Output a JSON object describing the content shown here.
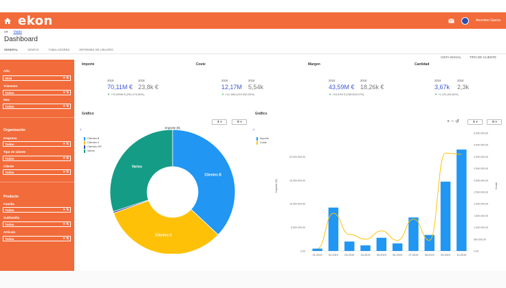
{
  "app": {
    "logo": "ekon",
    "user": "Anonimo Garcia"
  },
  "nav": {
    "menu_icon": "≡▾",
    "breadcrumb": "Visão",
    "title": "Dashboard"
  },
  "tabs": [
    "GENERAL",
    "VENTAS",
    "TABULADORES",
    "INFORMES DE USUARIO"
  ],
  "views": [
    "VISTA INICIAL",
    "TIPO DE CLIENTE"
  ],
  "sidebar": {
    "fields_top": [
      {
        "label": "Año",
        "value": "2019"
      },
      {
        "label": "Trimestre",
        "value": "Todos"
      },
      {
        "label": "Mes",
        "value": "Todos"
      }
    ],
    "org_title": "Organización",
    "fields_org": [
      {
        "label": "Empresa",
        "value": "Todos"
      },
      {
        "label": "Tipo de cliente",
        "value": "Todos"
      },
      {
        "label": "Cliente",
        "value": "Todos"
      }
    ],
    "prod_title": "Producto",
    "fields_prod": [
      {
        "label": "Familia",
        "value": "Todos"
      },
      {
        "label": "Subfamilia",
        "value": "Todos"
      },
      {
        "label": "Artículo",
        "value": "Todos"
      }
    ],
    "icons": "✕ ⇅"
  },
  "kpis": [
    {
      "title": "Importe",
      "y1": "2019",
      "y2": "2018",
      "v1": "70,11M €",
      "v2": "23,8k €",
      "delta": "+70,099M € (294.473,80%)"
    },
    {
      "title": "Coste",
      "y1": "2019",
      "y2": "2018",
      "v1": "12,17M",
      "v2": "5,54k",
      "delta": "+12,16M (219.453,33%)"
    },
    {
      "title": "Margen",
      "y1": "2019",
      "y2": "2018",
      "v1": "43,59M €",
      "v2": "18,26k €",
      "delta": "+43,57M € (238.603,07%)"
    },
    {
      "title": "Cantidad",
      "y1": "2019",
      "y2": "2018",
      "v1": "3,67k",
      "v2": "2,3k",
      "delta": "+1,37k (59,46%)"
    }
  ],
  "charts": {
    "left_title": "Gráfico",
    "right_title": "Gráfico",
    "download_btn": "⬇ ▾",
    "config_btn": "⚙ ▾",
    "arrow": "‹",
    "zoom_ctl": "+ − ↺",
    "pie_title": "Importe (€)",
    "y_left_label": "Importe (€)",
    "y_right_label": "Coste"
  },
  "colors": {
    "accent": "#f26b3a",
    "blue": "#2196f3",
    "yellow": "#ffc107",
    "green": "#149c86",
    "brand_text": "#3d57d6"
  },
  "chart_data": [
    {
      "type": "pie",
      "title": "Importe (€)",
      "slices": [
        {
          "name": "Clientes B",
          "label": "Clientes B",
          "value": 37
        },
        {
          "name": "Clientes C",
          "label": "Clientes C",
          "value": 32.5
        },
        {
          "name": "Clientes VIP",
          "label": "",
          "value": 0.4
        },
        {
          "name": "Varios",
          "label": "Varios",
          "value": 30.1
        }
      ],
      "legend": [
        "Clientes B",
        "Clientes C",
        "Clientes VIP",
        "Varios"
      ],
      "colors": [
        "#2196f3",
        "#ffc107",
        "#3949ab",
        "#149c86"
      ]
    },
    {
      "type": "bar",
      "categories": [
        "01-2019",
        "02-2019",
        "03-2019",
        "04-2019",
        "05-2019",
        "06-2019",
        "07-2019",
        "08-2019",
        "09-2019",
        "10-2019"
      ],
      "series": [
        {
          "name": "Importe",
          "type": "bar",
          "axis": "left",
          "values": [
            500000,
            9200000,
            2000000,
            1200000,
            2800000,
            1600000,
            7100000,
            3400000,
            14700000,
            21500000
          ]
        },
        {
          "name": "Coste",
          "type": "line",
          "axis": "right",
          "values": [
            100000,
            1600000,
            700000,
            500000,
            850000,
            450000,
            1350000,
            450000,
            4150000,
            4100000
          ]
        }
      ],
      "ylim_left": [
        0,
        25000000
      ],
      "yticks_left": [
        "0,00",
        "5.000.000,00",
        "10.000.000,00",
        "15.000.000,00",
        "20.000.000,00"
      ],
      "ylim_right": [
        0,
        5000000
      ],
      "yticks_right": [
        "0,00",
        "500.000,00",
        "1.000.000,00",
        "1.500.000,00",
        "2.000.000,00",
        "2.500.000,00",
        "3.000.000,00",
        "3.500.000,00",
        "4.000.000,00",
        "4.500.000,00",
        "5.000.000,00"
      ],
      "legend": [
        "Importe",
        "Coste"
      ],
      "colors": [
        "#2196f3",
        "#ffc107"
      ]
    }
  ]
}
